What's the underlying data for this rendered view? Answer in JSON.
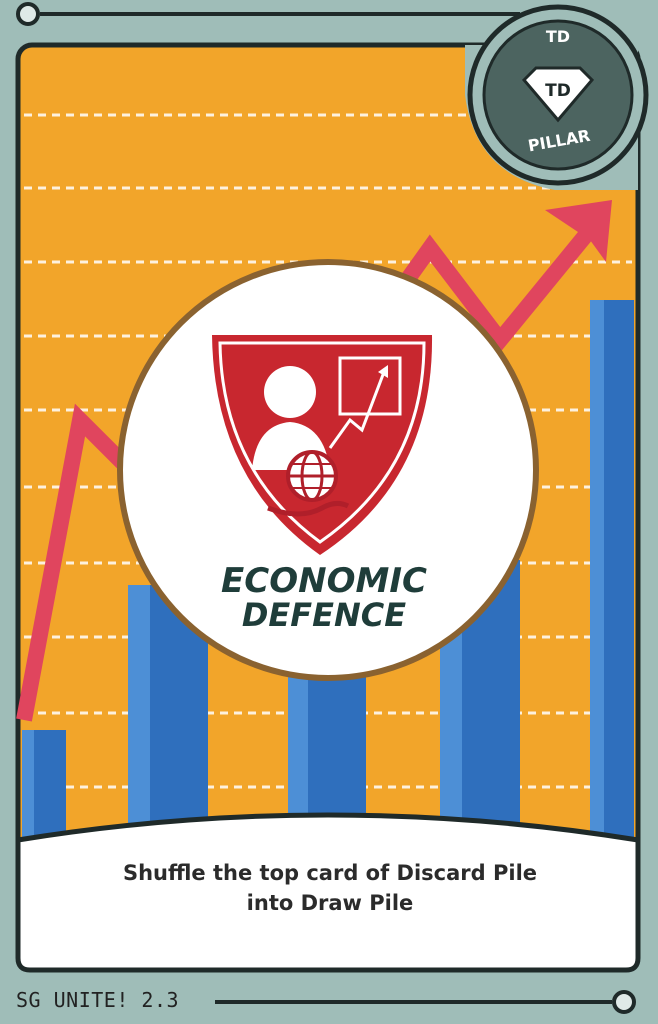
{
  "badge": {
    "top_text": "TD",
    "center_text": "TD",
    "bottom_text": "PILLAR"
  },
  "emblem": {
    "title_line1": "ECONOMIC",
    "title_line2": "DEFENCE"
  },
  "description": {
    "line1": "Shuffle the top card of Discard Pile",
    "line2": "into Draw Pile"
  },
  "footer": {
    "version": "SG UNITE! 2.3"
  },
  "colors": {
    "background": "#9fbdb8",
    "panel": "#f2a52a",
    "bars": "#2f6fbd",
    "trend": "#e0455e",
    "dark": "#223a38"
  },
  "icons": [
    "badge-diamond-icon",
    "shield-emblem-icon",
    "globe-hand-icon",
    "trend-arrow-icon"
  ]
}
